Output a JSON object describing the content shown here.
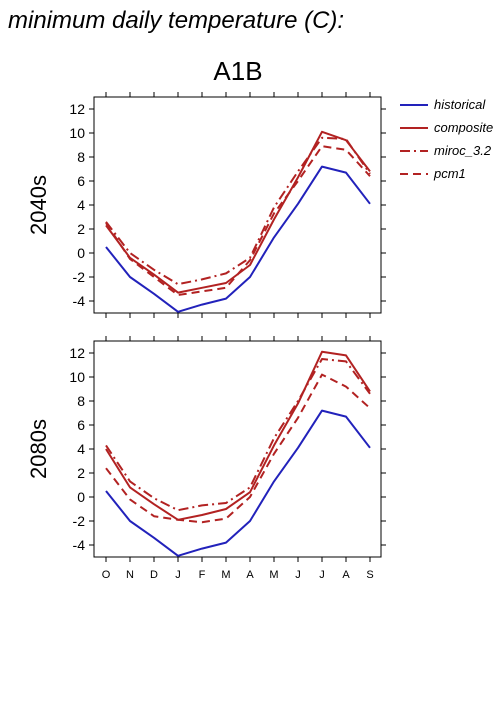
{
  "title": "minimum daily temperature (C):",
  "scenario": "A1B",
  "legend": [
    {
      "label": "historical",
      "color": "#2222bb",
      "dash": "solid"
    },
    {
      "label": "composite",
      "color": "#b22222",
      "dash": "solid"
    },
    {
      "label": "miroc_3.2",
      "color": "#b22222",
      "dash": "dashdot"
    },
    {
      "label": "pcm1",
      "color": "#b22222",
      "dash": "dashed"
    }
  ],
  "chart_data": [
    {
      "type": "line",
      "panel_label": "2040s",
      "categories": [
        "O",
        "N",
        "D",
        "J",
        "F",
        "M",
        "A",
        "M",
        "J",
        "J",
        "A",
        "S"
      ],
      "ylim": [
        -5,
        13
      ],
      "yticks": [
        -4,
        -2,
        0,
        2,
        4,
        6,
        8,
        10,
        12
      ],
      "series": [
        {
          "name": "historical",
          "values": [
            0.5,
            -2.0,
            -3.4,
            -4.9,
            -4.3,
            -3.8,
            -2.0,
            1.3,
            4.1,
            7.2,
            6.7,
            4.1
          ]
        },
        {
          "name": "composite",
          "values": [
            2.3,
            -0.4,
            -1.8,
            -3.3,
            -2.9,
            -2.5,
            -1.0,
            2.8,
            6.3,
            10.1,
            9.4,
            6.8
          ]
        },
        {
          "name": "miroc_3.2",
          "values": [
            2.6,
            0.0,
            -1.4,
            -2.6,
            -2.2,
            -1.7,
            -0.4,
            3.8,
            6.8,
            9.6,
            9.5,
            6.6
          ]
        },
        {
          "name": "pcm1",
          "values": [
            2.5,
            -0.5,
            -2.0,
            -3.5,
            -3.2,
            -2.9,
            -0.6,
            3.3,
            6.0,
            8.9,
            8.6,
            6.4
          ]
        }
      ]
    },
    {
      "type": "line",
      "panel_label": "2080s",
      "categories": [
        "O",
        "N",
        "D",
        "J",
        "F",
        "M",
        "A",
        "M",
        "J",
        "J",
        "A",
        "S"
      ],
      "ylim": [
        -5,
        13
      ],
      "yticks": [
        -4,
        -2,
        0,
        2,
        4,
        6,
        8,
        10,
        12
      ],
      "series": [
        {
          "name": "historical",
          "values": [
            0.5,
            -2.0,
            -3.4,
            -4.9,
            -4.3,
            -3.8,
            -2.0,
            1.3,
            4.1,
            7.2,
            6.7,
            4.1
          ]
        },
        {
          "name": "composite",
          "values": [
            4.0,
            0.8,
            -0.6,
            -1.9,
            -1.5,
            -1.0,
            0.4,
            4.3,
            7.8,
            12.1,
            11.8,
            8.8
          ]
        },
        {
          "name": "miroc_3.2",
          "values": [
            4.3,
            1.3,
            -0.1,
            -1.1,
            -0.7,
            -0.5,
            0.8,
            4.9,
            8.0,
            11.5,
            11.3,
            8.6
          ]
        },
        {
          "name": "pcm1",
          "values": [
            2.4,
            -0.2,
            -1.6,
            -1.9,
            -2.1,
            -1.8,
            0.0,
            3.6,
            6.6,
            10.2,
            9.2,
            7.4
          ]
        }
      ]
    }
  ]
}
